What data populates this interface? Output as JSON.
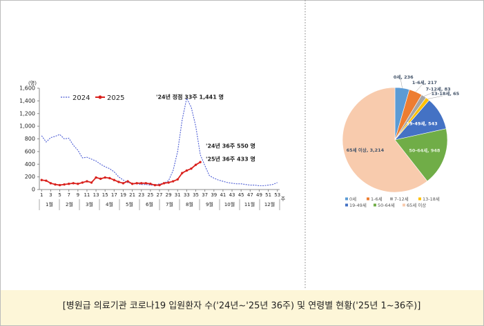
{
  "chart_data": [
    {
      "type": "line",
      "y_unit": "(명)",
      "x_unit": "주",
      "x": [
        1,
        2,
        3,
        4,
        5,
        6,
        7,
        8,
        9,
        10,
        11,
        12,
        13,
        14,
        15,
        16,
        17,
        18,
        19,
        20,
        21,
        22,
        23,
        24,
        25,
        26,
        27,
        28,
        29,
        30,
        31,
        32,
        33,
        34,
        35,
        36,
        37,
        38,
        39,
        40,
        41,
        42,
        43,
        44,
        45,
        46,
        47,
        48,
        49,
        50,
        51,
        52,
        53
      ],
      "xlim": [
        0.5,
        53.5
      ],
      "xticks": [
        1,
        3,
        5,
        7,
        9,
        11,
        13,
        15,
        17,
        19,
        21,
        23,
        25,
        27,
        29,
        31,
        33,
        35,
        37,
        39,
        41,
        43,
        45,
        47,
        49,
        51,
        53
      ],
      "months": [
        "1월",
        "2월",
        "3월",
        "4월",
        "5월",
        "6월",
        "7월",
        "8월",
        "9월",
        "10월",
        "11월",
        "12월"
      ],
      "ylim": [
        0,
        1600
      ],
      "yticks": [
        0,
        200,
        400,
        600,
        800,
        {
          "value": 1000,
          "label": "1,000"
        },
        {
          "value": 1200,
          "label": "1,200"
        },
        {
          "value": 1400,
          "label": "1,400"
        },
        {
          "value": 1600,
          "label": "1,600"
        }
      ],
      "series": [
        {
          "name": "2024",
          "color": "#4a5bd4",
          "values": [
            850,
            750,
            820,
            840,
            870,
            800,
            810,
            700,
            620,
            500,
            510,
            480,
            450,
            400,
            360,
            330,
            280,
            200,
            150,
            110,
            90,
            90,
            80,
            80,
            70,
            70,
            90,
            100,
            140,
            300,
            600,
            1100,
            1441,
            1300,
            1000,
            550,
            380,
            220,
            180,
            150,
            130,
            110,
            100,
            90,
            90,
            80,
            70,
            70,
            60,
            60,
            70,
            80,
            110
          ]
        },
        {
          "name": "2025",
          "color": "#d9201c",
          "values": [
            150,
            140,
            100,
            80,
            70,
            80,
            90,
            100,
            90,
            110,
            130,
            110,
            190,
            170,
            190,
            180,
            150,
            120,
            100,
            130,
            90,
            100,
            100,
            100,
            90,
            70,
            70,
            100,
            110,
            130,
            160,
            260,
            300,
            330,
            390,
            433,
            null,
            null,
            null,
            null,
            null,
            null,
            null,
            null,
            null,
            null,
            null,
            null,
            null,
            null,
            null,
            null,
            null
          ]
        }
      ],
      "annotations": [
        "'24년 정점 33주 1,441 명",
        "'24년 36주 550 명",
        "'25년 36주 433 명"
      ]
    },
    {
      "type": "pie",
      "categories": [
        "0세",
        "1-6세",
        "7-12세",
        "13-18세",
        "19-49세",
        "50-64세",
        "65세 이상"
      ],
      "values": [
        236,
        217,
        83,
        65,
        543,
        948,
        3214
      ],
      "value_labels": [
        "0세, 236",
        "1-6세, 217",
        "7-12세, 83",
        "13-18세, 65",
        "19-49세, 543",
        "50-64세, 948",
        "65세 이상, 3,214"
      ],
      "colors": [
        "#5b9bd5",
        "#ed7d31",
        "#a5a5a5",
        "#ffc000",
        "#4472c4",
        "#70ad47",
        "#f8cbad"
      ]
    }
  ],
  "caption": "[병원급 의료기관 코로나19 입원환자 수('24년~'25년 36주) 및 연령별 현황('25년 1~36주)]"
}
